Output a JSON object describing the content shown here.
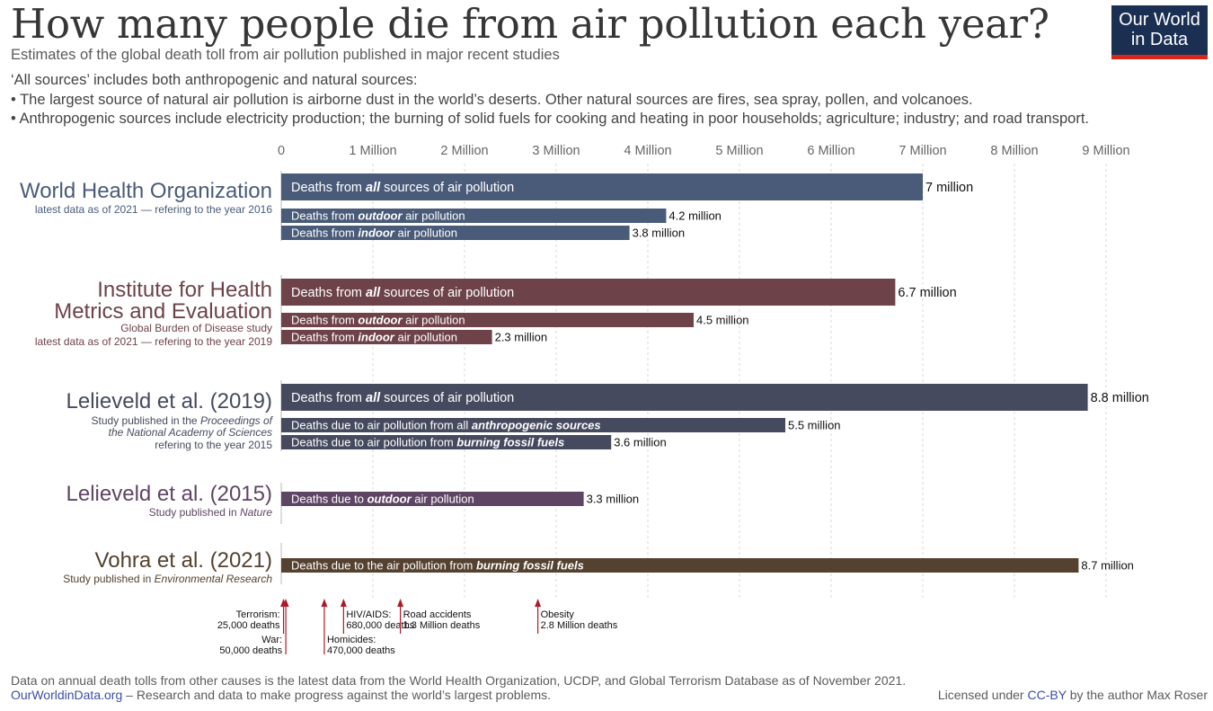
{
  "header": {
    "title": "How many people die from air pollution each year?",
    "subtitle": "Estimates of the global death toll from air pollution published in major recent studies",
    "notes": [
      "‘All sources’ includes both anthropogenic and natural sources:",
      "• The largest source of natural air pollution is airborne dust in the world’s deserts. Other natural sources are fires, sea spray, pollen, and volcanoes.",
      "• Anthropogenic sources include electricity production; the burning of solid fuels for cooking and heating in poor households; agriculture; industry; and road transport."
    ]
  },
  "logo": {
    "line1": "Our World",
    "line2": "in Data"
  },
  "footer": {
    "source": "Data on annual death tolls from other causes is the latest data from the World Health Organization, UCDP, and Global Terrorism Database as of November 2021.",
    "site": "OurWorldinData.org",
    "tagline": " – Research and data to make progress against the world’s largest problems.",
    "license_prefix": "Licensed under ",
    "license": "CC-BY",
    "license_suffix": " by the author Max Roser"
  },
  "chart_data": {
    "type": "bar",
    "orientation": "horizontal",
    "xlim": [
      0,
      9500000
    ],
    "x_ticks": [
      {
        "value": 0,
        "label": "0"
      },
      {
        "value": 1000000,
        "label": "1 Million"
      },
      {
        "value": 2000000,
        "label": "2 Million"
      },
      {
        "value": 3000000,
        "label": "3 Million"
      },
      {
        "value": 4000000,
        "label": "4 Million"
      },
      {
        "value": 5000000,
        "label": "5 Million"
      },
      {
        "value": 6000000,
        "label": "6 Million"
      },
      {
        "value": 7000000,
        "label": "7 Million"
      },
      {
        "value": 8000000,
        "label": "8 Million"
      },
      {
        "value": 9000000,
        "label": "9 Million"
      }
    ],
    "grid": true,
    "groups": [
      {
        "name": "World Health Organization",
        "name_lines": [
          "World Health Organization"
        ],
        "desc_lines": [
          [
            {
              "t": "latest data as of 2021 — refering to the year 2016"
            }
          ]
        ],
        "color": "#4a5b79",
        "bars": [
          {
            "label": [
              {
                "t": "Deaths from "
              },
              {
                "t": "all",
                "bi": true
              },
              {
                "t": " sources of air pollution"
              }
            ],
            "value": 7000000,
            "value_label": "7 million",
            "size": "large"
          },
          {
            "label": [
              {
                "t": "Deaths from "
              },
              {
                "t": "outdoor",
                "bi": true
              },
              {
                "t": " air pollution"
              }
            ],
            "value": 4200000,
            "value_label": "4.2 million",
            "size": "small"
          },
          {
            "label": [
              {
                "t": "Deaths from "
              },
              {
                "t": "indoor",
                "bi": true
              },
              {
                "t": " air pollution"
              }
            ],
            "value": 3800000,
            "value_label": "3.8 million",
            "size": "small"
          }
        ]
      },
      {
        "name": "Institute for Health Metrics and Evaluation",
        "name_lines": [
          "Institute for Health",
          "Metrics and Evaluation"
        ],
        "desc_lines": [
          [
            {
              "t": "Global Burden of Disease study"
            }
          ],
          [
            {
              "t": "latest data as of 2021 — refering to the year 2019"
            }
          ]
        ],
        "color": "#6e4249",
        "bars": [
          {
            "label": [
              {
                "t": "Deaths from "
              },
              {
                "t": "all",
                "bi": true
              },
              {
                "t": " sources of air pollution"
              }
            ],
            "value": 6700000,
            "value_label": "6.7 million",
            "size": "large"
          },
          {
            "label": [
              {
                "t": "Deaths from "
              },
              {
                "t": "outdoor",
                "bi": true
              },
              {
                "t": " air pollution"
              }
            ],
            "value": 4500000,
            "value_label": "4.5 million",
            "size": "small"
          },
          {
            "label": [
              {
                "t": "Deaths from "
              },
              {
                "t": "indoor",
                "bi": true
              },
              {
                "t": " air pollution"
              }
            ],
            "value": 2300000,
            "value_label": "2.3 million",
            "size": "small"
          }
        ]
      },
      {
        "name": "Lelieveld et al. (2019)",
        "name_lines": [
          "Lelieveld et al. (2019)"
        ],
        "desc_lines": [
          [
            {
              "t": "Study published in the "
            },
            {
              "t": "Proceedings of",
              "i": true
            }
          ],
          [
            {
              "t": "the National Academy of Sciences ",
              "i": true
            }
          ],
          [
            {
              "t": "refering to the year 2015"
            }
          ]
        ],
        "color": "#464a5e",
        "bars": [
          {
            "label": [
              {
                "t": "Deaths from "
              },
              {
                "t": "all",
                "bi": true
              },
              {
                "t": " sources of air pollution"
              }
            ],
            "value": 8800000,
            "value_label": "8.8 million",
            "size": "large"
          },
          {
            "label": [
              {
                "t": "Deaths due to air pollution from all "
              },
              {
                "t": "anthropogenic sources",
                "bi": true
              }
            ],
            "value": 5500000,
            "value_label": "5.5 million",
            "size": "small"
          },
          {
            "label": [
              {
                "t": "Deaths due to air pollution from "
              },
              {
                "t": "burning fossil fuels",
                "bi": true
              }
            ],
            "value": 3600000,
            "value_label": "3.6 million",
            "size": "small"
          }
        ]
      },
      {
        "name": "Lelieveld et al. (2015)",
        "name_lines": [
          "Lelieveld et al. (2015)"
        ],
        "desc_lines": [
          [
            {
              "t": "Study published in "
            },
            {
              "t": "Nature",
              "i": true
            }
          ]
        ],
        "color": "#5e4564",
        "bars": [
          {
            "label": [
              {
                "t": "Deaths due to "
              },
              {
                "t": "outdoor",
                "bi": true
              },
              {
                "t": " air pollution"
              }
            ],
            "value": 3300000,
            "value_label": "3.3 million",
            "size": "small"
          }
        ]
      },
      {
        "name": "Vohra et al. (2021)",
        "name_lines": [
          "Vohra et al. (2021)"
        ],
        "desc_lines": [
          [
            {
              "t": "Study published in "
            },
            {
              "t": "Environmental Research",
              "i": true
            }
          ]
        ],
        "color": "#54412f",
        "bars": [
          {
            "label": [
              {
                "t": "Deaths due to the air pollution from "
              },
              {
                "t": "burning fossil fuels",
                "bi": true
              }
            ],
            "value": 8700000,
            "value_label": "8.7 million",
            "size": "small"
          }
        ]
      }
    ],
    "comparisons": [
      {
        "cause": "Terrorism:",
        "deaths": "25,000 deaths",
        "value": 25000,
        "label_side": "left",
        "row": 0
      },
      {
        "cause": "War:",
        "deaths": "50,000 deaths",
        "value": 50000,
        "label_side": "left",
        "row": 1
      },
      {
        "cause": "Homicides:",
        "deaths": "470,000 deaths",
        "value": 470000,
        "label_side": "right",
        "row": 1
      },
      {
        "cause": "HIV/AIDS:",
        "deaths": "680,000 deaths",
        "value": 680000,
        "label_side": "right",
        "row": 0
      },
      {
        "cause": "Road accidents",
        "deaths": "1.3 Million deaths",
        "value": 1300000,
        "label_side": "right",
        "row": 0
      },
      {
        "cause": "Obesity",
        "deaths": "2.8 Million deaths",
        "value": 2800000,
        "label_side": "right",
        "row": 0
      }
    ]
  }
}
